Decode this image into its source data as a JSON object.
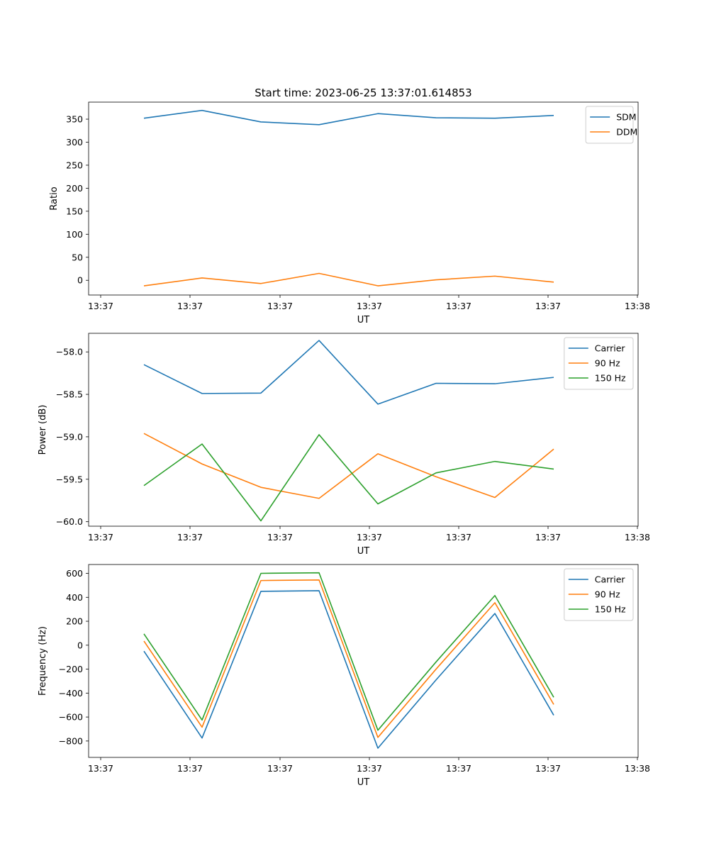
{
  "figure": {
    "title": "Start time: 2023-06-25 13:37:01.614853"
  },
  "colors": {
    "blue": "#1f77b4",
    "orange": "#ff7f0e",
    "green": "#2ca02c"
  },
  "chart_data": [
    {
      "type": "line",
      "title": "Start time: 2023-06-25 13:37:01.614853",
      "xlabel": "UT",
      "ylabel": "Ratio",
      "x_tick_labels": [
        "13:37",
        "13:37",
        "13:37",
        "13:37",
        "13:37",
        "13:37",
        "13:37",
        "13:38"
      ],
      "y_ticks": [
        0,
        50,
        100,
        150,
        200,
        250,
        300,
        350
      ],
      "y_tick_labels": [
        "0",
        "50",
        "100",
        "150",
        "200",
        "250",
        "300",
        "350"
      ],
      "ylim": [
        -32,
        387
      ],
      "legend": "upper right",
      "grid": false,
      "series": [
        {
          "name": "SDM",
          "color": "#1f77b4",
          "values": [
            352,
            369,
            344,
            338,
            362,
            353,
            352,
            358
          ]
        },
        {
          "name": "DDM",
          "color": "#ff7f0e",
          "values": [
            -12,
            5,
            -7,
            15,
            -12,
            1,
            9,
            -4
          ]
        }
      ]
    },
    {
      "type": "line",
      "xlabel": "UT",
      "ylabel": "Power (dB)",
      "x_tick_labels": [
        "13:37",
        "13:37",
        "13:37",
        "13:37",
        "13:37",
        "13:37",
        "13:37",
        "13:38"
      ],
      "y_ticks": [
        -60.0,
        -59.5,
        -59.0,
        -58.5,
        -58.0
      ],
      "y_tick_labels": [
        "−60.0",
        "−59.5",
        "−59.0",
        "−58.5",
        "−58.0"
      ],
      "ylim": [
        -60.053,
        -57.781
      ],
      "legend": "upper right",
      "grid": false,
      "series": [
        {
          "name": "Carrier",
          "color": "#1f77b4",
          "values": [
            -58.15,
            -58.49,
            -58.485,
            -57.865,
            -58.615,
            -58.37,
            -58.375,
            -58.3
          ]
        },
        {
          "name": "90 Hz",
          "color": "#ff7f0e",
          "values": [
            -58.96,
            -59.32,
            -59.595,
            -59.725,
            -59.2,
            -59.47,
            -59.715,
            -59.145
          ]
        },
        {
          "name": "150 Hz",
          "color": "#2ca02c",
          "values": [
            -59.575,
            -59.085,
            -59.99,
            -58.975,
            -59.79,
            -59.425,
            -59.29,
            -59.38
          ]
        }
      ]
    },
    {
      "type": "line",
      "xlabel": "UT",
      "ylabel": "Frequency (Hz)",
      "x_tick_labels": [
        "13:37",
        "13:37",
        "13:37",
        "13:37",
        "13:37",
        "13:37",
        "13:37",
        "13:38"
      ],
      "y_ticks": [
        -800,
        -600,
        -400,
        -200,
        0,
        200,
        400,
        600
      ],
      "y_tick_labels": [
        "−800",
        "−600",
        "−400",
        "−200",
        "0",
        "200",
        "400",
        "600"
      ],
      "ylim": [
        -937,
        674
      ],
      "legend": "upper right",
      "grid": false,
      "series": [
        {
          "name": "Carrier",
          "color": "#1f77b4",
          "values": [
            -50,
            -775,
            450,
            455,
            -860,
            -290,
            265,
            -585
          ]
        },
        {
          "name": "90 Hz",
          "color": "#ff7f0e",
          "values": [
            35,
            -685,
            540,
            545,
            -770,
            -200,
            355,
            -495
          ]
        },
        {
          "name": "150 Hz",
          "color": "#2ca02c",
          "values": [
            95,
            -625,
            600,
            605,
            -710,
            -140,
            415,
            -435
          ]
        }
      ]
    }
  ]
}
